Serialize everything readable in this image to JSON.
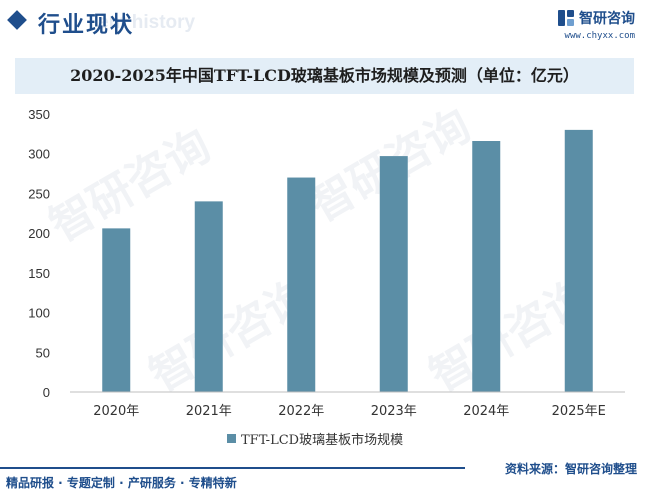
{
  "header": {
    "title": "行业现状",
    "subtitle": "ent history"
  },
  "brand": {
    "name": "智研咨询",
    "url": "www.chyxx.com"
  },
  "watermark": "智研咨询",
  "chart_data": {
    "type": "bar",
    "title": "2020-2025年中国TFT-LCD玻璃基板市场规模及预测（单位：亿元）",
    "categories": [
      "2020年",
      "2021年",
      "2022年",
      "2023年",
      "2024年",
      "2025年E"
    ],
    "series": [
      {
        "name": "TFT-LCD玻璃基板市场规模",
        "values": [
          206,
          240,
          270,
          297,
          316,
          330
        ],
        "color": "#5b8ea6"
      }
    ],
    "yticks": [
      "0",
      "50",
      "100",
      "150",
      "200",
      "250",
      "300",
      "350"
    ],
    "ylim": [
      0,
      350
    ],
    "grid": false,
    "legend_position": "bottom"
  },
  "footer": {
    "tags": "精品研报 · 专题定制 · 产研服务 · 专精特新",
    "source": "资料来源：智研咨询整理"
  }
}
